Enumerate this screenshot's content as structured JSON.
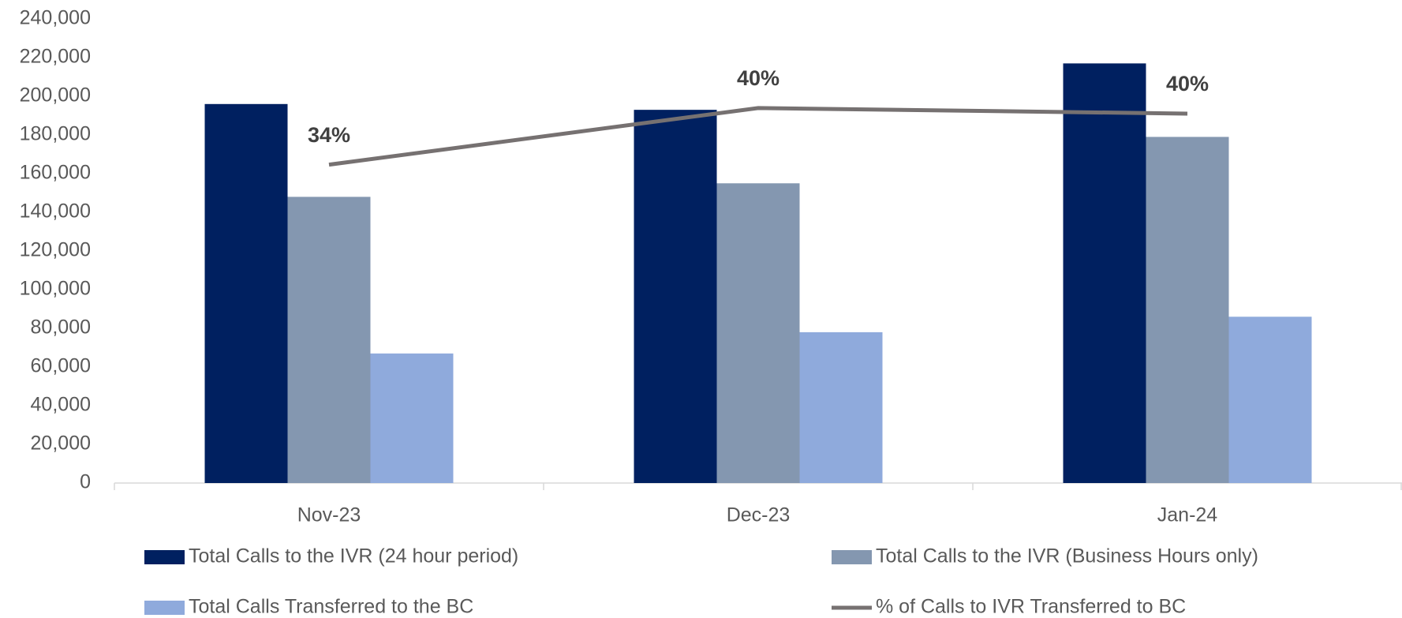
{
  "chart_data": {
    "type": "bar",
    "categories": [
      "Nov-23",
      "Dec-23",
      "Jan-24"
    ],
    "series": [
      {
        "name": "Total Calls to the IVR (24 hour period)",
        "color": "#002060",
        "values": [
          196000,
          193000,
          217000
        ]
      },
      {
        "name": "Total Calls to the IVR (Business Hours only)",
        "color": "#8497b0",
        "values": [
          148000,
          155000,
          179000
        ]
      },
      {
        "name": "Total Calls Transferred to the BC",
        "color": "#8faadc",
        "values": [
          67000,
          78000,
          86000
        ]
      },
      {
        "name": "% of Calls to IVR Transferred to BC",
        "color": "#767171",
        "type": "line",
        "axis": "y2",
        "values": [
          34.3,
          40.4,
          39.8
        ],
        "value_labels": [
          "34%",
          "40%",
          "40%"
        ]
      }
    ],
    "ylim": [
      0,
      240000
    ],
    "yticks": [
      0,
      {
        "value": 20000,
        "label": "20,000"
      },
      {
        "value": 40000,
        "label": "40,000"
      },
      {
        "value": 60000,
        "label": "60,000"
      },
      {
        "value": 80000,
        "label": "80,000"
      },
      {
        "value": 100000,
        "label": "100,000"
      },
      {
        "value": 120000,
        "label": "120,000"
      },
      {
        "value": 140000,
        "label": "140,000"
      },
      {
        "value": 160000,
        "label": "160,000"
      },
      {
        "value": 180000,
        "label": "180,000"
      },
      {
        "value": 200000,
        "label": "200,000"
      },
      {
        "value": 220000,
        "label": "220,000"
      },
      {
        "value": 240000,
        "label": "240,000"
      }
    ],
    "y2lim": [
      0,
      50
    ],
    "grid": false
  }
}
